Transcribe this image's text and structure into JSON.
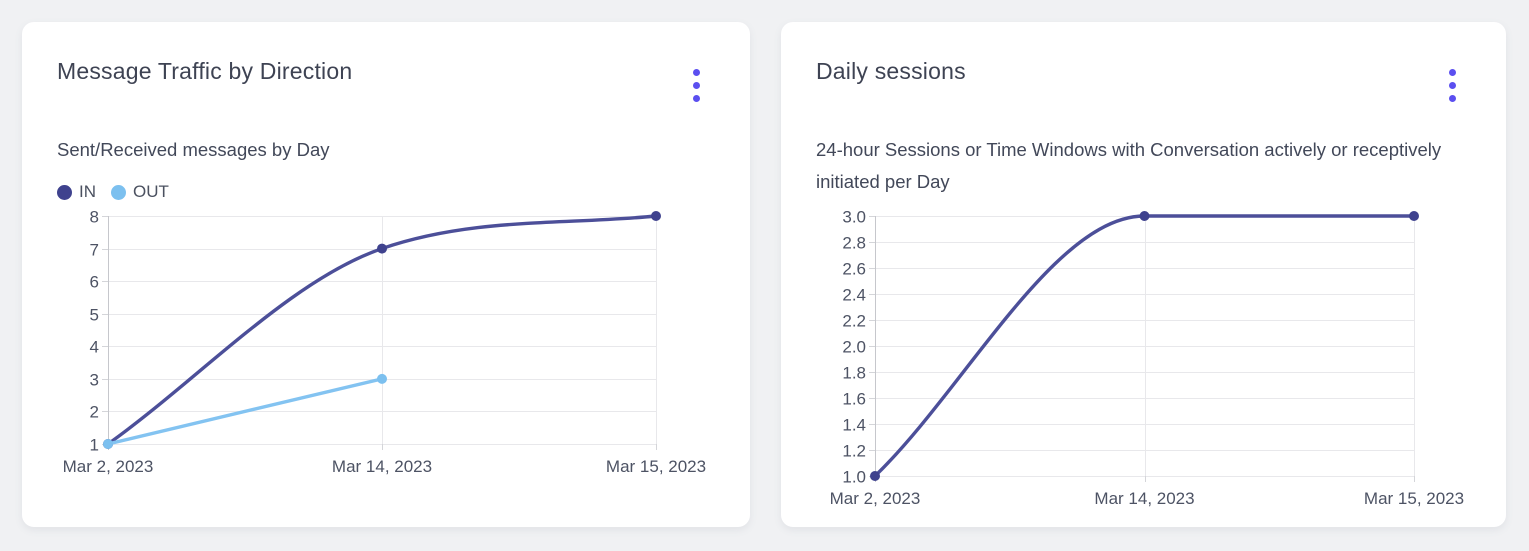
{
  "colors": {
    "accent": "#5b4ff0",
    "page_background": "#f0f1f3",
    "card_background": "#ffffff"
  },
  "chart_data": [
    {
      "type": "line",
      "title": "Message Traffic by Direction",
      "subtitle": "Sent/Received messages by Day",
      "menu_icon": "kebab-menu",
      "categories": [
        "Mar 2, 2023",
        "Mar 14, 2023",
        "Mar 15, 2023"
      ],
      "series": [
        {
          "name": "IN",
          "color": "#4c4f99",
          "point_color": "#3f428e",
          "values": [
            1,
            7,
            8
          ]
        },
        {
          "name": "OUT",
          "color": "#83c3f1",
          "point_color": "#7cc0ef",
          "values": [
            1,
            3,
            null
          ]
        }
      ],
      "ylim": [
        1,
        8
      ],
      "ytick_step": 1,
      "ytick_decimals": 0,
      "legend": true,
      "legend_position": "top-left",
      "grid": true
    },
    {
      "type": "line",
      "title": "Daily sessions",
      "subtitle": "24-hour Sessions or Time Windows with Conversation actively or receptively initiated per Day",
      "menu_icon": "kebab-menu",
      "categories": [
        "Mar 2, 2023",
        "Mar 14, 2023",
        "Mar 15, 2023"
      ],
      "series": [
        {
          "name": "",
          "color": "#4c4f99",
          "point_color": "#3f428e",
          "values": [
            1.0,
            3.0,
            3.0
          ]
        }
      ],
      "ylim": [
        1.0,
        3.0
      ],
      "ytick_step": 0.2,
      "ytick_decimals": 1,
      "legend": false,
      "legend_position": "none",
      "grid": true
    }
  ]
}
